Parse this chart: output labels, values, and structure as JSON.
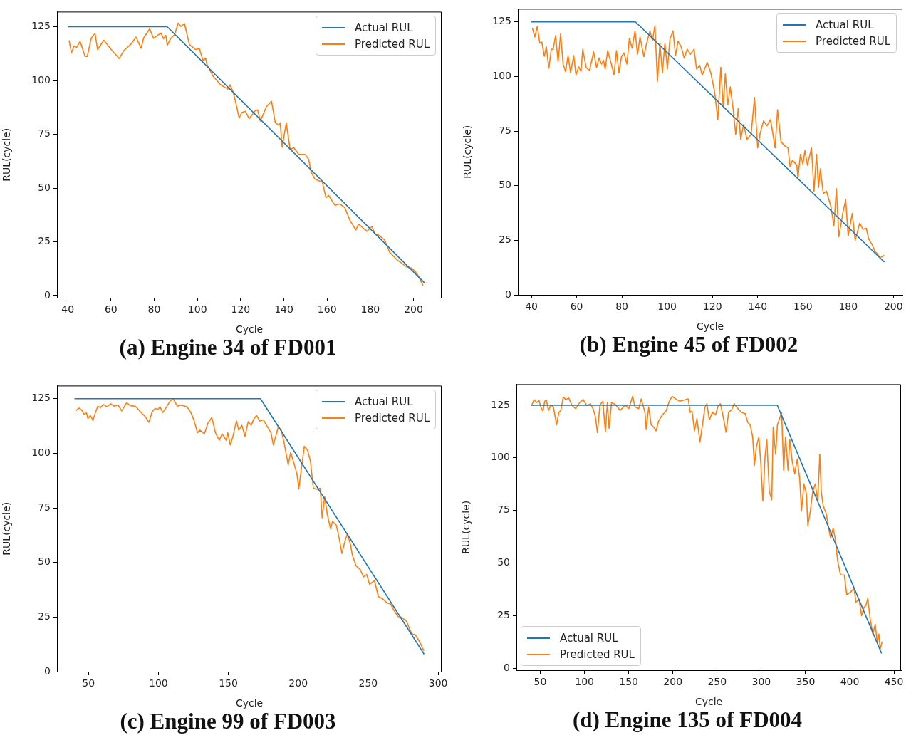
{
  "chart_data": [
    {
      "type": "line",
      "title": "(a) Engine 34 of FD001",
      "xlabel": "Cycle",
      "ylabel": "RUL(cycle)",
      "xlim": [
        35,
        213
      ],
      "ylim": [
        -1,
        132
      ],
      "xticks": [
        40,
        60,
        80,
        100,
        120,
        140,
        160,
        180,
        200
      ],
      "yticks": [
        0,
        25,
        50,
        75,
        100,
        125
      ],
      "legend": "top right",
      "series": [
        {
          "name": "Actual RUL",
          "color": "#1f77b4",
          "x": [
            40,
            86,
            205
          ],
          "values": [
            125,
            125,
            6
          ]
        },
        {
          "name": "Predicted RUL",
          "color": "#ff7f0e",
          "x": [
            40.6,
            41.7,
            42.9,
            44.0,
            45.7,
            48.0,
            49.0,
            50.9,
            52.6,
            53.8,
            56.7,
            60.1,
            61.8,
            63.8,
            65.9,
            69.3,
            71.6,
            73.9,
            75.1,
            77.9,
            79.7,
            82.0,
            83.1,
            84.3,
            85.4,
            86.0,
            87.7,
            89.4,
            91.1,
            92.3,
            94.0,
            96.3,
            99.2,
            100.9,
            102.6,
            103.8,
            104.4,
            107.2,
            110.7,
            114.1,
            115.1,
            116.4,
            117.6,
            119.3,
            120.5,
            122.2,
            123.9,
            126.8,
            127.9,
            129.1,
            132.0,
            134.3,
            136.0,
            137.7,
            138.3,
            139.2,
            141.1,
            142.9,
            144.6,
            146.9,
            149.8,
            151.5,
            152.6,
            154.4,
            157.8,
            159.5,
            160.7,
            163.6,
            165.9,
            168.2,
            170.5,
            173.3,
            174.5,
            178.5,
            180.8,
            182.0,
            183.7,
            186.6,
            188.9,
            192.3,
            196.9,
            199.2,
            201.5,
            204.4
          ],
          "values": [
            118.7,
            112.9,
            116.1,
            115.2,
            118.2,
            111.2,
            111.2,
            119.8,
            121.9,
            114.4,
            118.7,
            114.4,
            112.5,
            110.2,
            113.9,
            117.0,
            120.2,
            115.0,
            119.8,
            124.0,
            119.6,
            121.3,
            122.1,
            119.4,
            121.0,
            116.4,
            119.6,
            121.3,
            126.7,
            125.1,
            126.5,
            116.7,
            114.4,
            114.8,
            109.3,
            110.4,
            107.5,
            102.1,
            98.0,
            96.0,
            98.0,
            94.9,
            90.3,
            82.6,
            85.1,
            85.7,
            82.2,
            86.0,
            86.3,
            81.1,
            88.0,
            90.3,
            80.5,
            79.1,
            80.3,
            69.0,
            80.3,
            67.9,
            68.8,
            65.6,
            65.6,
            63.3,
            57.5,
            54.1,
            52.7,
            45.5,
            46.6,
            42.0,
            42.6,
            40.9,
            35.1,
            30.5,
            33.2,
            29.9,
            32.2,
            28.8,
            28.2,
            25.9,
            20.2,
            16.7,
            13.3,
            12.7,
            10.4,
            4.7
          ]
        }
      ]
    },
    {
      "type": "line",
      "title": "(b) Engine 45 of FD002",
      "xlabel": "Cycle",
      "ylabel": "RUL(cycle)",
      "xlim": [
        34,
        204
      ],
      "ylim": [
        0,
        131
      ],
      "xticks": [
        40,
        60,
        80,
        100,
        120,
        140,
        160,
        180,
        200
      ],
      "yticks": [
        0,
        25,
        50,
        75,
        100,
        125
      ],
      "legend": "top right",
      "series": [
        {
          "name": "Actual RUL",
          "color": "#1f77b4",
          "x": [
            40,
            86,
            196
          ],
          "values": [
            125,
            125,
            15
          ]
        },
        {
          "name": "Predicted RUL",
          "color": "#ff7f0e",
          "x": [
            40.4,
            41.5,
            42.6,
            43.7,
            44.6,
            45.7,
            46.6,
            47.7,
            48.8,
            49.6,
            50.7,
            51.8,
            52.9,
            54.0,
            55.1,
            56.2,
            57.3,
            58.7,
            59.7,
            60.9,
            61.9,
            62.7,
            64.2,
            65.7,
            67.5,
            68.8,
            69.9,
            71.0,
            71.9,
            72.6,
            73.7,
            75.2,
            76.5,
            77.6,
            78.7,
            79.8,
            80.9,
            82.2,
            83.3,
            84.5,
            85.8,
            86.9,
            88.0,
            89.7,
            90.8,
            92.4,
            93.5,
            94.6,
            95.7,
            96.8,
            97.9,
            99.0,
            100.1,
            101.2,
            102.6,
            103.7,
            104.8,
            106.2,
            107.5,
            108.9,
            110.3,
            111.9,
            113.0,
            114.4,
            115.5,
            117.7,
            119.3,
            121.0,
            122.4,
            123.7,
            124.8,
            125.7,
            126.8,
            127.9,
            129.2,
            130.3,
            131.4,
            132.5,
            133.8,
            135.3,
            137.1,
            138.6,
            140.0,
            141.1,
            142.6,
            144.1,
            145.7,
            147.7,
            148.8,
            150.3,
            151.8,
            153.4,
            154.3,
            155.4,
            157.3,
            157.8,
            158.9,
            160.0,
            160.9,
            162.0,
            163.8,
            164.9,
            166.0,
            166.9,
            167.7,
            169.0,
            170.4,
            172.3,
            173.7,
            174.8,
            175.9,
            177.6,
            178.9,
            180.0,
            181.8,
            183.1,
            185.1,
            186.6,
            188.0,
            189.1,
            190.5,
            191.9,
            193.0,
            194.1,
            196.0
          ],
          "values": [
            122.3,
            118.1,
            123.0,
            115.3,
            115.8,
            109.3,
            113.6,
            103.8,
            112.5,
            112.5,
            118.7,
            106.8,
            119.6,
            105.7,
            102.3,
            109.6,
            101.7,
            109.6,
            100.6,
            104.5,
            102.3,
            112.5,
            104.0,
            102.9,
            111.3,
            104.0,
            108.5,
            105.7,
            107.4,
            103.4,
            111.9,
            106.2,
            100.8,
            111.9,
            101.7,
            109.1,
            110.8,
            105.7,
            117.5,
            113.0,
            120.9,
            110.2,
            118.1,
            109.1,
            114.7,
            120.9,
            116.4,
            123.4,
            97.8,
            115.3,
            101.7,
            115.3,
            103.4,
            117.0,
            120.9,
            109.6,
            116.2,
            113.6,
            108.5,
            112.5,
            110.2,
            112.5,
            103.4,
            105.1,
            100.6,
            106.5,
            101.7,
            92.7,
            80.3,
            104.2,
            85.9,
            101.2,
            87.0,
            95.2,
            84.8,
            73.5,
            85.3,
            71.2,
            78.0,
            71.2,
            73.5,
            90.4,
            67.3,
            74.0,
            79.7,
            77.4,
            80.3,
            67.3,
            84.8,
            70.1,
            68.4,
            67.3,
            58.8,
            61.6,
            59.4,
            53.7,
            64.4,
            59.9,
            66.1,
            59.4,
            67.3,
            47.5,
            64.4,
            49.2,
            57.7,
            46.4,
            47.5,
            40.7,
            31.7,
            48.6,
            26.6,
            37.3,
            43.5,
            26.9,
            37.3,
            24.9,
            32.8,
            30.0,
            30.5,
            25.5,
            23.2,
            19.8,
            18.7,
            17.0,
            18.1
          ]
        }
      ]
    },
    {
      "type": "line",
      "title": "(c) Engine 99 of FD003",
      "xlabel": "Cycle",
      "ylabel": "RUL(cycle)",
      "xlim": [
        27.5,
        302.5
      ],
      "ylim": [
        0,
        131
      ],
      "xticks": [
        50,
        100,
        150,
        200,
        250,
        300
      ],
      "yticks": [
        0,
        25,
        50,
        75,
        100,
        125
      ],
      "legend": "top right",
      "series": [
        {
          "name": "Actual RUL",
          "color": "#1f77b4",
          "x": [
            40,
            173,
            290
          ],
          "values": [
            125,
            125,
            8
          ]
        },
        {
          "name": "Predicted RUL",
          "color": "#ff7f0e",
          "x": [
            40.8,
            43.3,
            45.2,
            46.8,
            48.6,
            49.6,
            51.4,
            53.2,
            54.9,
            56.7,
            58.5,
            60.6,
            63.2,
            65.9,
            68.5,
            71.2,
            73.8,
            77.3,
            80.0,
            83.5,
            87.9,
            90.6,
            93.2,
            95.5,
            97.6,
            99.7,
            101.1,
            103.2,
            105.5,
            108.5,
            110.8,
            113.5,
            116.1,
            118.8,
            120.5,
            123.2,
            125.5,
            127.9,
            129.7,
            132.9,
            135.5,
            138.2,
            140.8,
            143.5,
            145.6,
            148.4,
            149.6,
            151.4,
            153.1,
            155.8,
            157.5,
            159.7,
            161.9,
            164.2,
            166.4,
            168.1,
            170.2,
            172.5,
            175.2,
            177.3,
            180.5,
            182.2,
            185.8,
            187.9,
            190.2,
            192.8,
            194.6,
            196.7,
            199.0,
            200.4,
            201.6,
            204.3,
            206.6,
            208.7,
            210.8,
            213.6,
            215.7,
            217.1,
            218.9,
            220.7,
            223.1,
            224.5,
            227.2,
            229.5,
            231.2,
            233.4,
            235.1,
            237.2,
            238.6,
            241.3,
            244.3,
            246.6,
            248.9,
            251.0,
            254.5,
            257.2,
            260.7,
            263.3,
            266.0,
            268.3,
            271.3,
            273.9,
            277.4,
            281.0,
            283.6,
            285.9,
            287.7,
            289.8
          ],
          "values": [
            119.4,
            120.7,
            119.8,
            117.9,
            118.5,
            116.0,
            117.3,
            115.1,
            118.5,
            121.6,
            120.9,
            122.4,
            121.3,
            122.7,
            121.6,
            122.1,
            119.4,
            123.2,
            121.8,
            121.6,
            118.5,
            116.8,
            114.2,
            119.0,
            120.5,
            120.1,
            121.3,
            118.7,
            120.9,
            124.1,
            124.7,
            121.6,
            122.1,
            121.6,
            121.3,
            118.7,
            115.1,
            109.4,
            110.6,
            108.9,
            113.9,
            116.4,
            109.4,
            106.0,
            108.9,
            106.0,
            109.4,
            103.8,
            107.2,
            114.8,
            110.6,
            112.8,
            107.7,
            114.5,
            112.8,
            115.6,
            117.3,
            114.8,
            115.3,
            112.8,
            109.4,
            103.8,
            112.2,
            110.6,
            103.8,
            94.8,
            100.4,
            95.9,
            90.8,
            83.7,
            89.7,
            103.2,
            101.5,
            96.4,
            84.0,
            83.5,
            84.0,
            70.5,
            80.1,
            72.2,
            65.4,
            68.8,
            67.1,
            60.3,
            54.1,
            59.8,
            63.1,
            58.6,
            53.6,
            48.5,
            46.8,
            43.4,
            44.5,
            40.0,
            41.7,
            34.4,
            33.2,
            31.5,
            31.0,
            28.2,
            25.3,
            24.8,
            23.1,
            17.4,
            16.9,
            14.6,
            12.4,
            9.5
          ]
        }
      ]
    },
    {
      "type": "line",
      "title": "(d) Engine 135 of FD004",
      "xlabel": "Cycle",
      "ylabel": "RUL(cycle)",
      "xlim": [
        23,
        458
      ],
      "ylim": [
        -1,
        135
      ],
      "xticks": [
        50,
        100,
        150,
        200,
        250,
        300,
        350,
        400,
        450
      ],
      "yticks": [
        0,
        25,
        50,
        75,
        100,
        125
      ],
      "legend": "bottom left",
      "series": [
        {
          "name": "Actual RUL",
          "color": "#1f77b4",
          "x": [
            40,
            318,
            436
          ],
          "values": [
            125,
            125,
            7
          ]
        },
        {
          "name": "Predicted RUL",
          "color": "#ff7f0e",
          "x": [
            40.2,
            43.0,
            45.8,
            48.6,
            50.8,
            53.1,
            55.0,
            57.0,
            59.2,
            62.0,
            64.8,
            68.5,
            71.0,
            73.2,
            76.0,
            78.8,
            82.2,
            85.8,
            90.0,
            94.2,
            98.4,
            102.6,
            106.8,
            110.2,
            112.4,
            114.6,
            117.5,
            120.8,
            123.6,
            125.9,
            127.8,
            130.6,
            134.8,
            140.4,
            146.0,
            150.2,
            154.4,
            157.2,
            161.4,
            164.2,
            168.4,
            169.8,
            172.6,
            175.4,
            178.2,
            181.0,
            183.8,
            188.0,
            192.2,
            195.9,
            199.2,
            203.4,
            207.6,
            213.2,
            217.4,
            219.4,
            221.6,
            224.4,
            227.2,
            230.6,
            233.4,
            236.2,
            238.4,
            241.2,
            244.6,
            248.2,
            251.0,
            253.8,
            257.5,
            260.2,
            263.0,
            266.4,
            269.2,
            273.4,
            277.6,
            281.8,
            284.6,
            287.4,
            290.2,
            292.2,
            294.4,
            297.2,
            299.4,
            301.7,
            304.2,
            306.2,
            309.0,
            311.8,
            313.4,
            316.2,
            318.2,
            320.2,
            323.0,
            325.2,
            327.4,
            330.2,
            332.2,
            335.0,
            337.8,
            340.6,
            343.4,
            345.4,
            348.2,
            351.0,
            352.6,
            355.4,
            358.2,
            361.0,
            363.8,
            366.1,
            367.7,
            370.0,
            373.3,
            376.1,
            378.4,
            381.2,
            384.0,
            386.2,
            389.6,
            393.8,
            396.6,
            400.8,
            405.0,
            406.9,
            410.6,
            413.4,
            416.2,
            418.1,
            420.4,
            423.2,
            426.0,
            428.8,
            431.0,
            433.0,
            434.4,
            436.6
          ],
          "values": [
            124.9,
            127.7,
            126.3,
            127.2,
            123.9,
            122.2,
            126.9,
            127.5,
            122.5,
            125.1,
            124.2,
            115.7,
            121.6,
            122.5,
            128.9,
            127.7,
            128.4,
            124.9,
            123.4,
            126.1,
            127.7,
            124.9,
            125.7,
            122.8,
            119.3,
            112.0,
            125.1,
            126.9,
            112.5,
            126.3,
            114.0,
            126.3,
            125.4,
            122.5,
            125.1,
            123.4,
            129.2,
            124.2,
            123.4,
            128.0,
            121.6,
            113.4,
            124.2,
            115.7,
            114.6,
            112.8,
            117.5,
            120.4,
            122.2,
            126.9,
            129.2,
            128.0,
            126.9,
            127.5,
            128.0,
            121.6,
            122.2,
            112.8,
            118.7,
            107.5,
            115.7,
            123.9,
            125.7,
            118.1,
            121.6,
            120.4,
            124.5,
            125.7,
            118.1,
            112.2,
            121.6,
            122.8,
            125.7,
            123.4,
            121.6,
            121.0,
            116.9,
            115.7,
            109.9,
            96.4,
            105.2,
            109.9,
            97.6,
            79.4,
            100.5,
            108.7,
            84.1,
            80.0,
            114.6,
            101.7,
            115.7,
            118.1,
            121.6,
            94.1,
            109.9,
            94.1,
            108.7,
            98.2,
            92.3,
            99.3,
            90.0,
            74.7,
            87.6,
            82.9,
            67.7,
            74.7,
            84.1,
            87.6,
            79.4,
            101.7,
            84.1,
            77.1,
            73.6,
            66.5,
            61.8,
            66.5,
            60.7,
            51.3,
            44.3,
            44.3,
            34.9,
            36.1,
            37.8,
            31.4,
            32.6,
            24.9,
            29.0,
            29.6,
            33.1,
            23.2,
            16.2,
            20.8,
            12.6,
            16.2,
            9.1,
            12.6
          ]
        }
      ]
    }
  ]
}
